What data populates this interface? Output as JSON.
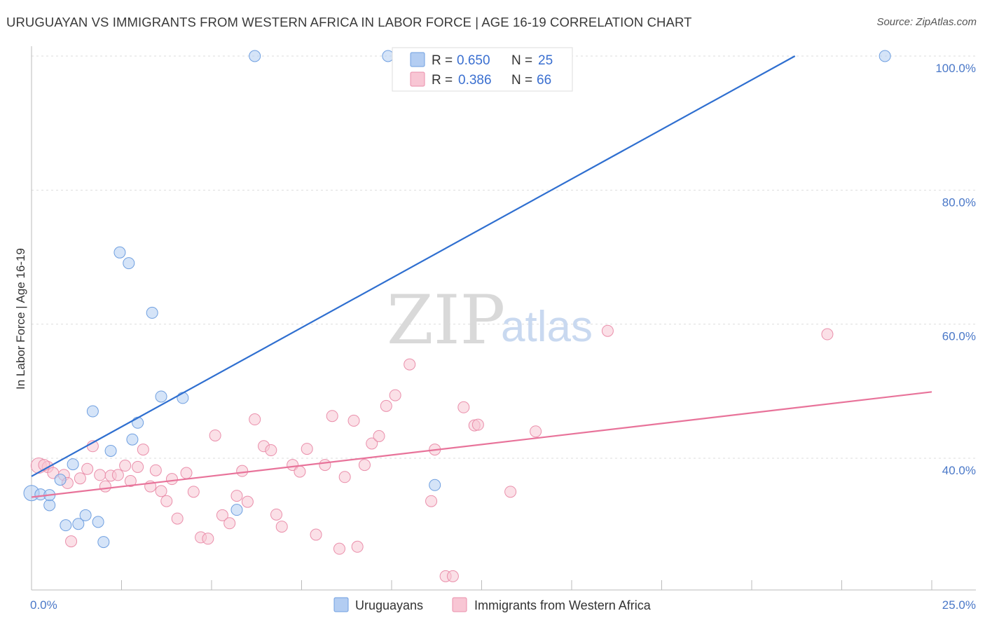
{
  "title": "URUGUAYAN VS IMMIGRANTS FROM WESTERN AFRICA IN LABOR FORCE | AGE 16-19 CORRELATION CHART",
  "source": "Source: ZipAtlas.com",
  "watermark": {
    "zip": "ZIP",
    "atlas": "atlas"
  },
  "colors": {
    "blue_fill": "#b3cdf2",
    "blue_stroke": "#6f9fe0",
    "blue_line": "#2f6fd0",
    "pink_fill": "#f8c6d4",
    "pink_stroke": "#ea8fab",
    "pink_line": "#e8739a",
    "grid": "#dddddd",
    "tick_text": "#4a78c8"
  },
  "legend": {
    "r_label": "R =",
    "n_label": "N =",
    "items": [
      {
        "r": "0.650",
        "n": "25"
      },
      {
        "r": "0.386",
        "n": "66"
      }
    ]
  },
  "chart_data": {
    "type": "scatter",
    "title": "URUGUAYAN VS IMMIGRANTS FROM WESTERN AFRICA IN LABOR FORCE | AGE 16-19 CORRELATION CHART",
    "xlabel": "",
    "ylabel": "In Labor Force | Age 16-19",
    "xlim": [
      0,
      25
    ],
    "ylim": [
      21,
      101
    ],
    "x_tick_labels": [
      "0.0%",
      "25.0%"
    ],
    "y_ticks": [
      100,
      80,
      60,
      40
    ],
    "y_tick_labels": [
      "100.0%",
      "80.0%",
      "60.0%",
      "40.0%"
    ],
    "grid": true,
    "series": [
      {
        "name": "Uruguayans",
        "r": 0.65,
        "n": 25,
        "trend": [
          [
            0,
            37.3
          ],
          [
            21.2,
            100
          ]
        ],
        "points": [
          [
            0.0,
            34.8
          ],
          [
            0.25,
            34.6
          ],
          [
            0.5,
            33.0
          ],
          [
            0.8,
            36.8
          ],
          [
            0.95,
            30.0
          ],
          [
            1.15,
            39.1
          ],
          [
            1.3,
            30.2
          ],
          [
            1.5,
            31.5
          ],
          [
            1.7,
            47.0
          ],
          [
            1.85,
            30.5
          ],
          [
            2.0,
            27.5
          ],
          [
            2.2,
            41.1
          ],
          [
            2.45,
            70.7
          ],
          [
            2.7,
            69.1
          ],
          [
            2.95,
            45.3
          ],
          [
            2.8,
            42.8
          ],
          [
            3.35,
            61.7
          ],
          [
            3.6,
            49.2
          ],
          [
            4.2,
            49.0
          ],
          [
            5.7,
            32.3
          ],
          [
            6.2,
            100.0
          ],
          [
            9.9,
            100.0
          ],
          [
            11.2,
            36.0
          ],
          [
            23.7,
            100.0
          ],
          [
            0.5,
            34.5
          ]
        ]
      },
      {
        "name": "Immigrants from Western Africa",
        "r": 0.386,
        "n": 66,
        "trend": [
          [
            0,
            34.2
          ],
          [
            25,
            49.9
          ]
        ],
        "points": [
          [
            0.2,
            38.9
          ],
          [
            0.45,
            38.7
          ],
          [
            0.6,
            37.8
          ],
          [
            0.9,
            37.5
          ],
          [
            1.0,
            36.3
          ],
          [
            1.1,
            27.6
          ],
          [
            1.35,
            37.0
          ],
          [
            1.55,
            38.4
          ],
          [
            1.7,
            41.8
          ],
          [
            1.9,
            37.5
          ],
          [
            2.05,
            35.8
          ],
          [
            2.2,
            37.4
          ],
          [
            2.4,
            37.5
          ],
          [
            2.6,
            38.9
          ],
          [
            2.75,
            36.6
          ],
          [
            2.95,
            38.7
          ],
          [
            3.1,
            41.3
          ],
          [
            3.3,
            35.8
          ],
          [
            3.45,
            38.2
          ],
          [
            3.6,
            35.1
          ],
          [
            3.75,
            33.6
          ],
          [
            3.9,
            36.9
          ],
          [
            4.05,
            31.0
          ],
          [
            4.3,
            37.8
          ],
          [
            4.5,
            35.0
          ],
          [
            4.7,
            28.2
          ],
          [
            4.9,
            28.0
          ],
          [
            5.1,
            43.4
          ],
          [
            5.3,
            31.5
          ],
          [
            5.5,
            30.3
          ],
          [
            5.7,
            34.4
          ],
          [
            5.85,
            38.1
          ],
          [
            6.0,
            33.5
          ],
          [
            6.2,
            45.8
          ],
          [
            6.45,
            41.8
          ],
          [
            6.65,
            41.2
          ],
          [
            6.8,
            31.6
          ],
          [
            6.95,
            29.8
          ],
          [
            7.25,
            39.0
          ],
          [
            7.45,
            38.0
          ],
          [
            7.65,
            41.4
          ],
          [
            7.9,
            28.6
          ],
          [
            8.15,
            39.0
          ],
          [
            8.35,
            46.3
          ],
          [
            8.55,
            26.5
          ],
          [
            8.7,
            37.2
          ],
          [
            8.95,
            45.6
          ],
          [
            9.05,
            26.8
          ],
          [
            9.25,
            39.0
          ],
          [
            9.45,
            42.2
          ],
          [
            9.65,
            43.3
          ],
          [
            9.85,
            47.8
          ],
          [
            10.1,
            49.4
          ],
          [
            10.5,
            54.0
          ],
          [
            11.1,
            33.6
          ],
          [
            11.2,
            41.3
          ],
          [
            11.5,
            22.4
          ],
          [
            11.7,
            22.4
          ],
          [
            12.0,
            47.6
          ],
          [
            12.3,
            44.9
          ],
          [
            12.4,
            45.0
          ],
          [
            13.3,
            35.0
          ],
          [
            14.0,
            44.0
          ],
          [
            16.0,
            59.0
          ],
          [
            22.1,
            58.5
          ],
          [
            0.35,
            39.0
          ]
        ]
      }
    ]
  },
  "bottom_legend": [
    "Uruguayans",
    "Immigrants from Western Africa"
  ]
}
